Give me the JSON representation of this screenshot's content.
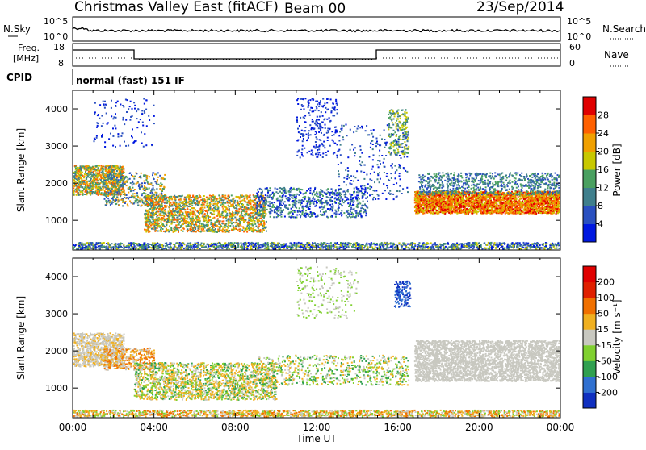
{
  "header": {
    "title": "Christmas Valley East (fitACF)",
    "beam": "Beam 00",
    "date": "23/Sep/2014"
  },
  "status_panel": {
    "nsky_label": "N.Sky",
    "nsky_ticks": [
      "10^5",
      "10^0"
    ],
    "nsearch_label": "N.Search",
    "freq_label_1": "Freq.",
    "freq_label_2": "[MHz]",
    "freq_ticks": [
      "18",
      "8"
    ],
    "nave_label": "Nave",
    "nave_ticks": [
      "60",
      "0"
    ],
    "cpid_label": "CPID",
    "cpid_value": "normal (fast) 151 IF"
  },
  "chart_data": [
    {
      "type": "heatmap",
      "name": "power",
      "ylabel": "Slant Range [km]",
      "yticks": [
        1000,
        2000,
        3000,
        4000
      ],
      "ylim": [
        200,
        4500
      ],
      "xlim": [
        0,
        24
      ],
      "colorbar": {
        "label": "Power [dB]",
        "ticks": [
          "4",
          "8",
          "12",
          "16",
          "20",
          "24",
          "28"
        ],
        "colors": [
          "#0018e0",
          "#2a50c0",
          "#3f7f8c",
          "#4aa060",
          "#c8c800",
          "#f0a000",
          "#ff6000",
          "#e00000"
        ]
      }
    },
    {
      "type": "heatmap",
      "name": "velocity",
      "ylabel": "Slant Range [km]",
      "yticks": [
        1000,
        2000,
        3000,
        4000
      ],
      "ylim": [
        200,
        4500
      ],
      "xlim": [
        0,
        24
      ],
      "xlabel": "Time UT",
      "xticks": [
        "00:00",
        "04:00",
        "08:00",
        "12:00",
        "16:00",
        "20:00",
        "00:00"
      ],
      "colorbar": {
        "label": "Velocity [m s⁻¹]",
        "ticks": [
          "200",
          "100",
          "50",
          "15",
          "-15",
          "-50",
          "-100",
          "-200"
        ],
        "colors": [
          "#1030c0",
          "#3070d0",
          "#30a050",
          "#80d030",
          "#c8c8c0",
          "#f0b020",
          "#f07000",
          "#e02000",
          "#e00000"
        ]
      }
    }
  ],
  "colors": {
    "gray_scatter": "#c8c8c0",
    "frame": "#000000"
  }
}
